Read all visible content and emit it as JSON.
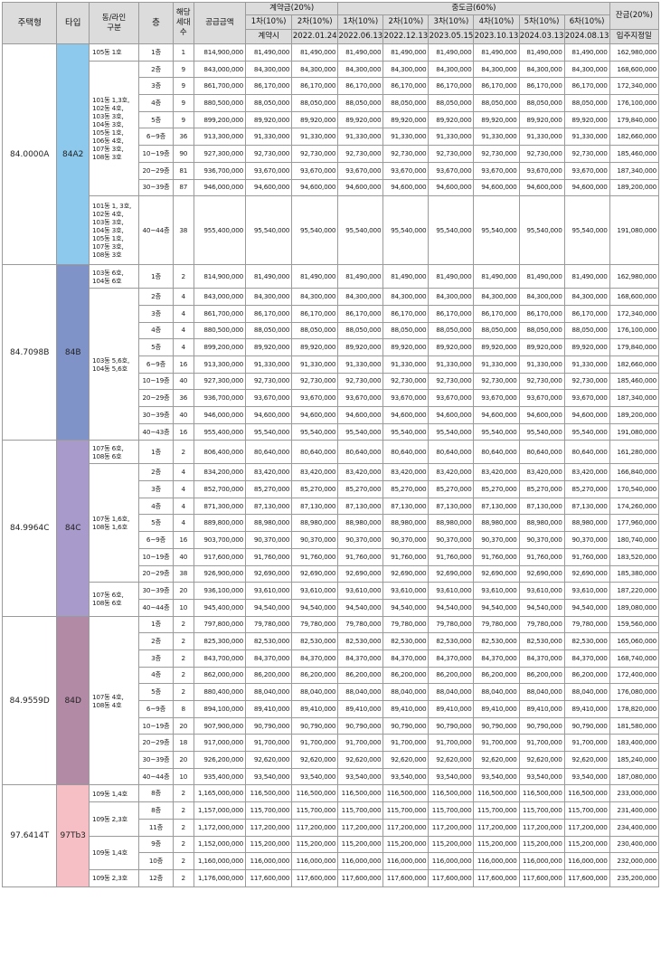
{
  "headers": {
    "housing_type": "주택형",
    "type": "타입",
    "dong_line": "동/라인\n구분",
    "floor": "층",
    "units": "해당\n세대\n수",
    "supply_price": "공급금액",
    "deposit": "계약금(20%)",
    "interim": "중도금(60%)",
    "balance": "잔금(20%)",
    "r1": [
      "1차(10%)",
      "2차(10%)",
      "1차(10%)",
      "2차(10%)",
      "3차(10%)",
      "4차(10%)",
      "5차(10%)",
      "6차(10%)"
    ],
    "r2": [
      "계약시",
      "2022.01.24",
      "2022.06.13",
      "2022.12.13",
      "2023.05.15",
      "2023.10.13",
      "2024.03.13",
      "2024.08.13",
      "입주지정일"
    ]
  },
  "groups": [
    {
      "house": "84.0000A",
      "type": "84A2",
      "color": "#8dc9ec",
      "rows": [
        {
          "dong": "105동 1호",
          "f": "1층",
          "n": "1",
          "price": "814,900,000",
          "d": "81,490,000",
          "bal": "162,980,000"
        },
        {
          "dong": "101동 1,3호,\n102동 4호,\n103동 3호,\n104동 3호,\n105동 1호,\n106동 4호,\n107동 3호,\n108동 3호",
          "dongspan": 8,
          "f": "2층",
          "n": "9",
          "price": "843,000,000",
          "d": "84,300,000",
          "bal": "168,600,000"
        },
        {
          "f": "3층",
          "n": "9",
          "price": "861,700,000",
          "d": "86,170,000",
          "bal": "172,340,000"
        },
        {
          "f": "4층",
          "n": "9",
          "price": "880,500,000",
          "d": "88,050,000",
          "bal": "176,100,000"
        },
        {
          "f": "5층",
          "n": "9",
          "price": "899,200,000",
          "d": "89,920,000",
          "bal": "179,840,000"
        },
        {
          "f": "6~9층",
          "n": "36",
          "price": "913,300,000",
          "d": "91,330,000",
          "bal": "182,660,000"
        },
        {
          "f": "10~19층",
          "n": "90",
          "price": "927,300,000",
          "d": "92,730,000",
          "bal": "185,460,000"
        },
        {
          "f": "20~29층",
          "n": "81",
          "price": "936,700,000",
          "d": "93,670,000",
          "bal": "187,340,000"
        },
        {
          "f": "30~39층",
          "n": "87",
          "price": "946,000,000",
          "d": "94,600,000",
          "bal": "189,200,000"
        },
        {
          "dong": "101동 1, 3호,\n102동 4호,\n103동 3호,\n104동 3호,\n105동 1호,\n107동 3호,\n108동 3호",
          "tall": true,
          "f": "40~44층",
          "n": "38",
          "price": "955,400,000",
          "d": "95,540,000",
          "bal": "191,080,000"
        }
      ]
    },
    {
      "house": "84.7098B",
      "type": "84B",
      "color": "#7f93c9",
      "rows": [
        {
          "dong": "103동 6호,\n104동 6호",
          "dh": true,
          "f": "1층",
          "n": "2",
          "price": "814,900,000",
          "d": "81,490,000",
          "bal": "162,980,000"
        },
        {
          "dong": "103동 5,6호,\n104동 5,6호",
          "dongspan": 9,
          "f": "2층",
          "n": "4",
          "price": "843,000,000",
          "d": "84,300,000",
          "bal": "168,600,000"
        },
        {
          "f": "3층",
          "n": "4",
          "price": "861,700,000",
          "d": "86,170,000",
          "bal": "172,340,000"
        },
        {
          "f": "4층",
          "n": "4",
          "price": "880,500,000",
          "d": "88,050,000",
          "bal": "176,100,000"
        },
        {
          "f": "5층",
          "n": "4",
          "price": "899,200,000",
          "d": "89,920,000",
          "bal": "179,840,000"
        },
        {
          "f": "6~9층",
          "n": "16",
          "price": "913,300,000",
          "d": "91,330,000",
          "bal": "182,660,000"
        },
        {
          "f": "10~19층",
          "n": "40",
          "price": "927,300,000",
          "d": "92,730,000",
          "bal": "185,460,000"
        },
        {
          "f": "20~29층",
          "n": "36",
          "price": "936,700,000",
          "d": "93,670,000",
          "bal": "187,340,000"
        },
        {
          "f": "30~39층",
          "n": "40",
          "price": "946,000,000",
          "d": "94,600,000",
          "bal": "189,200,000"
        },
        {
          "f": "40~43층",
          "n": "16",
          "price": "955,400,000",
          "d": "95,540,000",
          "bal": "191,080,000"
        }
      ]
    },
    {
      "house": "84.9964C",
      "type": "84C",
      "color": "#a89acb",
      "rows": [
        {
          "dong": "107동 6호,\n108동 6호",
          "dh": true,
          "f": "1층",
          "n": "2",
          "price": "806,400,000",
          "d": "80,640,000",
          "bal": "161,280,000"
        },
        {
          "dong": "107동 1,6호,\n108동 1,6호",
          "dongspan": 7,
          "f": "2층",
          "n": "4",
          "price": "834,200,000",
          "d": "83,420,000",
          "bal": "166,840,000"
        },
        {
          "f": "3층",
          "n": "4",
          "price": "852,700,000",
          "d": "85,270,000",
          "bal": "170,540,000"
        },
        {
          "f": "4층",
          "n": "4",
          "price": "871,300,000",
          "d": "87,130,000",
          "bal": "174,260,000"
        },
        {
          "f": "5층",
          "n": "4",
          "price": "889,800,000",
          "d": "88,980,000",
          "bal": "177,960,000"
        },
        {
          "f": "6~9층",
          "n": "16",
          "price": "903,700,000",
          "d": "90,370,000",
          "bal": "180,740,000"
        },
        {
          "f": "10~19층",
          "n": "40",
          "price": "917,600,000",
          "d": "91,760,000",
          "bal": "183,520,000"
        },
        {
          "f": "20~29층",
          "n": "38",
          "price": "926,900,000",
          "d": "92,690,000",
          "bal": "185,380,000"
        },
        {
          "dong": "107동 6호,\n108동 6호",
          "dongspan": 2,
          "f": "30~39층",
          "n": "20",
          "price": "936,100,000",
          "d": "93,610,000",
          "bal": "187,220,000"
        },
        {
          "f": "40~44층",
          "n": "10",
          "price": "945,400,000",
          "d": "94,540,000",
          "bal": "189,080,000"
        }
      ]
    },
    {
      "house": "84.9559D",
      "type": "84D",
      "color": "#b38aa6",
      "rows": [
        {
          "dong": "107동 4호,\n108동 4호",
          "dongspan": 10,
          "f": "1층",
          "n": "2",
          "price": "797,800,000",
          "d": "79,780,000",
          "bal": "159,560,000"
        },
        {
          "f": "2층",
          "n": "2",
          "price": "825,300,000",
          "d": "82,530,000",
          "bal": "165,060,000"
        },
        {
          "f": "3층",
          "n": "2",
          "price": "843,700,000",
          "d": "84,370,000",
          "bal": "168,740,000"
        },
        {
          "f": "4층",
          "n": "2",
          "price": "862,000,000",
          "d": "86,200,000",
          "bal": "172,400,000"
        },
        {
          "f": "5층",
          "n": "2",
          "price": "880,400,000",
          "d": "88,040,000",
          "bal": "176,080,000"
        },
        {
          "f": "6~9층",
          "n": "8",
          "price": "894,100,000",
          "d": "89,410,000",
          "bal": "178,820,000"
        },
        {
          "f": "10~19층",
          "n": "20",
          "price": "907,900,000",
          "d": "90,790,000",
          "bal": "181,580,000"
        },
        {
          "f": "20~29층",
          "n": "18",
          "price": "917,000,000",
          "d": "91,700,000",
          "bal": "183,400,000"
        },
        {
          "f": "30~39층",
          "n": "20",
          "price": "926,200,000",
          "d": "92,620,000",
          "bal": "185,240,000"
        },
        {
          "f": "40~44층",
          "n": "10",
          "price": "935,400,000",
          "d": "93,540,000",
          "bal": "187,080,000"
        }
      ]
    },
    {
      "house": "97.6414T",
      "type": "97Tb3",
      "color": "#f6bfc6",
      "rows": [
        {
          "dong": "109동 1,4호",
          "f": "8층",
          "n": "2",
          "price": "1,165,000,000",
          "d": "116,500,000",
          "bal": "233,000,000"
        },
        {
          "dong": "109동 2,3호",
          "dongspan": 2,
          "f": "8층",
          "n": "2",
          "price": "1,157,000,000",
          "d": "115,700,000",
          "bal": "231,400,000"
        },
        {
          "f": "11층",
          "n": "2",
          "price": "1,172,000,000",
          "d": "117,200,000",
          "bal": "234,400,000"
        },
        {
          "dong": "109동 1,4호",
          "dongspan": 2,
          "f": "9층",
          "n": "2",
          "price": "1,152,000,000",
          "d": "115,200,000",
          "bal": "230,400,000"
        },
        {
          "f": "10층",
          "n": "2",
          "price": "1,160,000,000",
          "d": "116,000,000",
          "bal": "232,000,000"
        },
        {
          "dong": "109동 2,3호",
          "f": "12층",
          "n": "2",
          "price": "1,176,000,000",
          "d": "117,600,000",
          "bal": "235,200,000"
        }
      ]
    }
  ]
}
